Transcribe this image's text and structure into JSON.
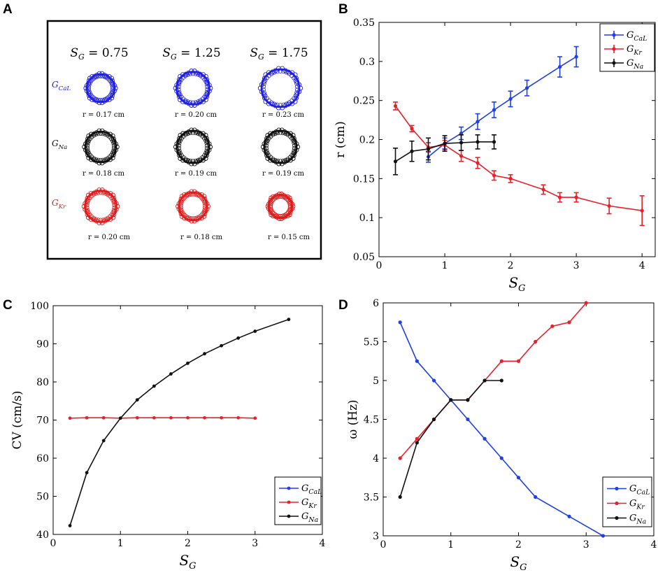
{
  "panel_labels": {
    "a": "A",
    "b": "B",
    "c": "C",
    "d": "D"
  },
  "panel_a": {
    "column_titles": [
      "S_G = 0.75",
      "S_G = 1.25",
      "S_G = 1.75"
    ],
    "column_sg_values": [
      "0.75",
      "1.25",
      "1.75"
    ],
    "rows": [
      {
        "name": "G_CaL",
        "base": "G",
        "sub": "CaL",
        "color": "#1f1fe0",
        "radii": [
          "r = 0.17 cm",
          "r = 0.20 cm",
          "r = 0.23 cm"
        ],
        "values_cm": [
          0.17,
          0.2,
          0.23
        ]
      },
      {
        "name": "G_Na",
        "base": "G",
        "sub": "Na",
        "color": "#111111",
        "radii": [
          "r = 0.18 cm",
          "r = 0.19 cm",
          "r = 0.19 cm"
        ],
        "values_cm": [
          0.18,
          0.19,
          0.19
        ]
      },
      {
        "name": "G_Kr",
        "base": "G",
        "sub": "Kr",
        "color": "#e01a1a",
        "radii": [
          "r = 0.20 cm",
          "r = 0.18 cm",
          "r = 0.15 cm"
        ],
        "values_cm": [
          0.2,
          0.18,
          0.15
        ]
      }
    ]
  },
  "legend_entries": [
    {
      "key": "CaL",
      "base": "G",
      "sub": "CaL",
      "color": "#1f3fe8"
    },
    {
      "key": "Kr",
      "base": "G",
      "sub": "Kr",
      "color": "#e8202a"
    },
    {
      "key": "Na",
      "base": "G",
      "sub": "Na",
      "color": "#111111"
    }
  ],
  "chart_data": [
    {
      "id": "B",
      "type": "line",
      "error_bars": true,
      "xlabel": "S_G",
      "ylabel": "r  (cm)",
      "xlim": [
        0,
        4.2
      ],
      "ylim": [
        0.05,
        0.35
      ],
      "xticks": [
        "0",
        "1",
        "2",
        "3",
        "4"
      ],
      "xtick_values": [
        0,
        1,
        2,
        3,
        4
      ],
      "yticks": [
        "0.05",
        "0.1",
        "0.15",
        "0.2",
        "0.25",
        "0.3",
        "0.35"
      ],
      "ytick_values": [
        0.05,
        0.1,
        0.15,
        0.2,
        0.25,
        0.3,
        0.35
      ],
      "legend_position": "top-right",
      "series": [
        {
          "name": "G_CaL",
          "key": "CaL",
          "x": [
            0.75,
            1.0,
            1.25,
            1.5,
            1.75,
            2.0,
            2.25,
            2.75,
            3.0
          ],
          "y": [
            0.178,
            0.195,
            0.208,
            0.223,
            0.238,
            0.252,
            0.266,
            0.293,
            0.306
          ],
          "err": [
            0.007,
            0.007,
            0.008,
            0.01,
            0.01,
            0.01,
            0.01,
            0.013,
            0.013
          ]
        },
        {
          "name": "G_Kr",
          "key": "Kr",
          "x": [
            0.25,
            0.5,
            0.75,
            1.0,
            1.25,
            1.5,
            1.75,
            2.0,
            2.5,
            2.75,
            3.0,
            3.5,
            4.0
          ],
          "y": [
            0.243,
            0.214,
            0.19,
            0.193,
            0.179,
            0.17,
            0.154,
            0.15,
            0.136,
            0.126,
            0.126,
            0.115,
            0.109
          ],
          "err": [
            0.005,
            0.004,
            0.006,
            0.006,
            0.007,
            0.007,
            0.006,
            0.005,
            0.006,
            0.006,
            0.006,
            0.01,
            0.019
          ]
        },
        {
          "name": "G_Na",
          "key": "Na",
          "x": [
            0.25,
            0.5,
            0.75,
            1.0,
            1.25,
            1.5,
            1.75
          ],
          "y": [
            0.172,
            0.185,
            0.188,
            0.195,
            0.196,
            0.197,
            0.197
          ],
          "err": [
            0.017,
            0.013,
            0.014,
            0.01,
            0.01,
            0.009,
            0.009
          ]
        }
      ]
    },
    {
      "id": "C",
      "type": "line",
      "xlabel": "S_G",
      "ylabel": "CV  (cm/s)",
      "xlim": [
        0,
        4
      ],
      "ylim": [
        40,
        100
      ],
      "xticks": [
        "0",
        "1",
        "2",
        "3",
        "4"
      ],
      "xtick_values": [
        0,
        1,
        2,
        3,
        4
      ],
      "yticks": [
        "40",
        "50",
        "60",
        "70",
        "80",
        "90",
        "100"
      ],
      "ytick_values": [
        40,
        50,
        60,
        70,
        80,
        90,
        100
      ],
      "legend_position": "bottom-right",
      "series": [
        {
          "name": "G_CaL",
          "key": "CaL",
          "x": [],
          "y": []
        },
        {
          "name": "G_Kr",
          "key": "Kr",
          "x": [
            0.25,
            0.5,
            0.75,
            1.0,
            1.25,
            1.5,
            1.75,
            2.0,
            2.25,
            2.5,
            2.75,
            3.0
          ],
          "y": [
            70.5,
            70.6,
            70.6,
            70.5,
            70.6,
            70.6,
            70.6,
            70.6,
            70.6,
            70.6,
            70.6,
            70.5
          ]
        },
        {
          "name": "G_Na",
          "key": "Na",
          "x": [
            0.25,
            0.5,
            0.75,
            1.0,
            1.25,
            1.5,
            1.75,
            2.0,
            2.25,
            2.5,
            2.75,
            3.0,
            3.5
          ],
          "y": [
            42.3,
            56.2,
            64.6,
            70.5,
            75.3,
            78.9,
            82.1,
            84.9,
            87.4,
            89.5,
            91.5,
            93.3,
            96.4
          ]
        }
      ]
    },
    {
      "id": "D",
      "type": "line",
      "xlabel": "S_G",
      "ylabel": "ω  (Hz)",
      "xlim": [
        0,
        4
      ],
      "ylim": [
        3,
        6
      ],
      "xticks": [
        "0",
        "1",
        "2",
        "3",
        "4"
      ],
      "xtick_values": [
        0,
        1,
        2,
        3,
        4
      ],
      "yticks": [
        "3",
        "3.5",
        "4",
        "4.5",
        "5",
        "5.5",
        "6"
      ],
      "ytick_values": [
        3,
        3.5,
        4,
        4.5,
        5,
        5.5,
        6
      ],
      "legend_position": "bottom-right",
      "series": [
        {
          "name": "G_CaL",
          "key": "CaL",
          "x": [
            0.25,
            0.5,
            0.75,
            1.0,
            1.25,
            1.5,
            1.75,
            2.0,
            2.25,
            2.75,
            3.25
          ],
          "y": [
            5.75,
            5.25,
            5.0,
            4.75,
            4.5,
            4.25,
            4.0,
            3.75,
            3.5,
            3.25,
            3.0
          ]
        },
        {
          "name": "G_Kr",
          "key": "Kr",
          "x": [
            0.25,
            0.5,
            0.75,
            1.0,
            1.25,
            1.5,
            1.75,
            2.0,
            2.25,
            2.5,
            2.75,
            3.0
          ],
          "y": [
            4.0,
            4.25,
            4.5,
            4.75,
            4.75,
            5.0,
            5.25,
            5.25,
            5.5,
            5.7,
            5.75,
            6.0
          ]
        },
        {
          "name": "G_Na",
          "key": "Na",
          "x": [
            0.25,
            0.5,
            0.75,
            1.0,
            1.25,
            1.5,
            1.75
          ],
          "y": [
            3.5,
            4.2,
            4.5,
            4.75,
            4.75,
            5.0,
            5.0
          ]
        }
      ]
    }
  ]
}
